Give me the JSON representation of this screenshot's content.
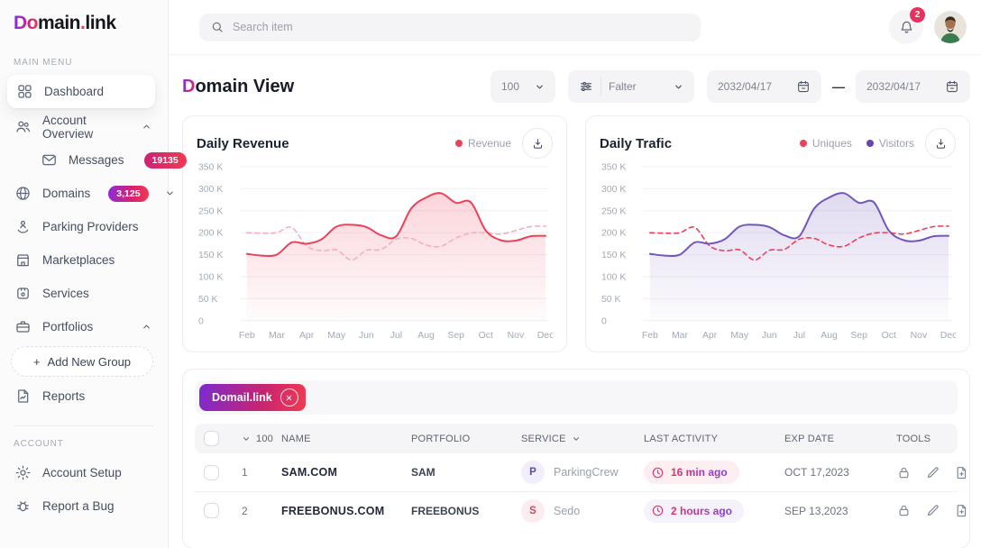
{
  "brand": {
    "logo_do": "Do",
    "logo_main": "main",
    "logo_dot": ".",
    "logo_link": "link"
  },
  "topbar": {
    "search_placeholder": "Search item",
    "notification_count": "2"
  },
  "sidebar": {
    "section_main": "MAIN MENU",
    "section_account": "ACCOUNT",
    "dashboard": "Dashboard",
    "account_overview": "Account Overview",
    "messages": "Messages",
    "messages_badge": "19135",
    "domains": "Domains",
    "domains_badge": "3,125",
    "parking_providers": "Parking Providers",
    "marketplaces": "Marketplaces",
    "services": "Services",
    "portfolios": "Portfolios",
    "add_plus": "+",
    "add_new_group": "Add New Group",
    "reports": "Reports",
    "account_setup": "Account Setup",
    "report_a_bug": "Report a Bug"
  },
  "header": {
    "title_d": "D",
    "title_rest": "omain View",
    "page_size": "100",
    "filter_label": "Falter",
    "date_from": "2032/04/17",
    "date_sep": "—",
    "date_to": "2032/04/17"
  },
  "chart_data": [
    {
      "type": "area",
      "title": "Daily Revenue",
      "x_ticks": [
        "Feb",
        "Mar",
        "Apr",
        "May",
        "Jun",
        "Jul",
        "Aug",
        "Sep",
        "Oct",
        "Nov",
        "Dec"
      ],
      "y_ticks": [
        "350 K",
        "300 K",
        "250 K",
        "200 K",
        "150 K",
        "100 K",
        "50 K",
        "0"
      ],
      "ylim_k": [
        0,
        350
      ],
      "grid": true,
      "legend_position": "top-right",
      "x_note": "21 samples at half-month steps Feb through Dec, values in thousands",
      "legend": [
        {
          "label": "Revenue",
          "color": "#ee4159"
        }
      ],
      "series": [
        {
          "name": "Revenue",
          "style": "solid",
          "color": "#ee4159",
          "fill": true,
          "values_k": [
            152,
            148,
            150,
            178,
            175,
            185,
            214,
            218,
            213,
            194,
            192,
            255,
            280,
            290,
            268,
            269,
            205,
            183,
            182,
            192,
            193
          ]
        },
        {
          "name": "Revenue (secondary dashed)",
          "style": "dashed",
          "color": "#f6aec0",
          "fill": false,
          "values_k": [
            200,
            199,
            200,
            212,
            170,
            159,
            161,
            138,
            160,
            162,
            185,
            187,
            172,
            169,
            188,
            199,
            200,
            197,
            205,
            214,
            215
          ]
        }
      ]
    },
    {
      "type": "area",
      "title": "Daily Trafic",
      "x_ticks": [
        "Feb",
        "Mar",
        "Apr",
        "May",
        "Jun",
        "Jul",
        "Aug",
        "Sep",
        "Oct",
        "Nov",
        "Dec"
      ],
      "y_ticks": [
        "350 K",
        "300 K",
        "250 K",
        "200 K",
        "150 K",
        "100 K",
        "50 K",
        "0"
      ],
      "ylim_k": [
        0,
        350
      ],
      "grid": true,
      "legend_position": "top-right",
      "x_note": "21 samples at half-month steps Feb through Dec, values in thousands",
      "legend": [
        {
          "label": "Uniques",
          "color": "#ee4159"
        },
        {
          "label": "Visitors",
          "color": "#6a43b5"
        }
      ],
      "series": [
        {
          "name": "Visitors",
          "style": "solid",
          "color": "#7456bb",
          "fill": true,
          "values_k": [
            152,
            148,
            150,
            178,
            175,
            185,
            214,
            218,
            213,
            194,
            192,
            255,
            280,
            290,
            268,
            269,
            205,
            183,
            182,
            192,
            193
          ]
        },
        {
          "name": "Uniques",
          "style": "dashed",
          "color": "#ee4159",
          "fill": false,
          "values_k": [
            200,
            199,
            200,
            212,
            170,
            159,
            161,
            138,
            160,
            162,
            185,
            187,
            172,
            169,
            188,
            199,
            200,
            197,
            205,
            214,
            215
          ]
        }
      ]
    }
  ],
  "table": {
    "tag_label": "Domail.link",
    "col_count": "100",
    "col_name": "NAME",
    "col_portfolio": "PORTFOLIO",
    "col_service": "SERVICE",
    "col_activity": "LAST ACTIVITY",
    "col_exp": "EXP DATE",
    "col_tools": "TOOLS",
    "rows": [
      {
        "num": "1",
        "name": "SAM.COM",
        "portfolio": "SAM",
        "service_initial": "P",
        "service": "ParkingCrew",
        "activity": "16 min ago",
        "exp": "OCT 17,2023",
        "service_tint": "purple",
        "activity_tint": "pink"
      },
      {
        "num": "2",
        "name": "FREEBONUS.COM",
        "portfolio": "FREEBONUS",
        "service_initial": "S",
        "service": "Sedo",
        "activity": "2 hours ago",
        "exp": "SEP 13,2023",
        "service_tint": "pink",
        "activity_tint": "purple"
      }
    ]
  }
}
